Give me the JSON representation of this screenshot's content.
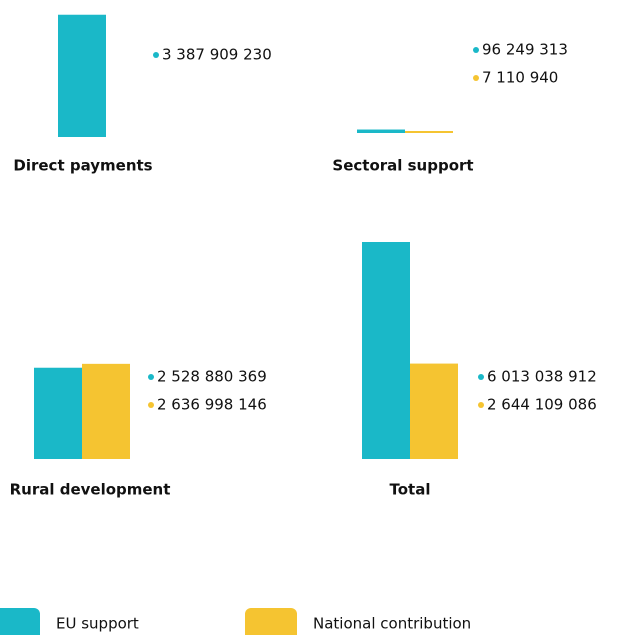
{
  "chart_data": [
    {
      "type": "bar",
      "title": "Direct payments",
      "series": [
        {
          "name": "EU support",
          "color": "#1ab8c8",
          "values": [
            3387909230
          ],
          "value_labels": [
            "3 387 909 230"
          ]
        }
      ]
    },
    {
      "type": "bar",
      "title": "Sectoral support",
      "series": [
        {
          "name": "EU support",
          "color": "#1ab8c8",
          "values": [
            96249313
          ],
          "value_labels": [
            "96 249 313"
          ]
        },
        {
          "name": "National contribution",
          "color": "#f5c431",
          "values": [
            7110940
          ],
          "value_labels": [
            "7 110 940"
          ]
        }
      ]
    },
    {
      "type": "bar",
      "title": "Rural development",
      "series": [
        {
          "name": "EU support",
          "color": "#1ab8c8",
          "values": [
            2528880369
          ],
          "value_labels": [
            "2 528 880 369"
          ]
        },
        {
          "name": "National contribution",
          "color": "#f5c431",
          "values": [
            2636998146
          ],
          "value_labels": [
            "2 636 998 146"
          ]
        }
      ]
    },
    {
      "type": "bar",
      "title": "Total",
      "series": [
        {
          "name": "EU support",
          "color": "#1ab8c8",
          "values": [
            6013038912
          ],
          "value_labels": [
            "6 013 038 912"
          ]
        },
        {
          "name": "National contribution",
          "color": "#f5c431",
          "values": [
            2644109086
          ],
          "value_labels": [
            "2 644 109 086"
          ]
        }
      ]
    }
  ]
}
